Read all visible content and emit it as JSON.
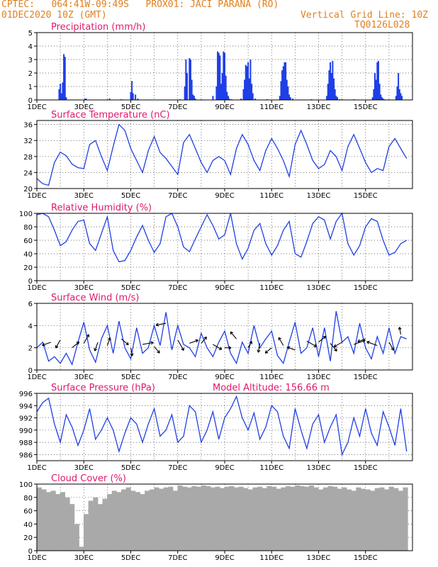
{
  "header": {
    "line1_left": "CPTEC:   064:41W-09:49S   PROX01: JACI PARANA (RO)",
    "line2_left": "01DEC2020 10Z (GMT)",
    "line2_right": "Vertical Grid Line: 10Z",
    "line3_right": "TQ0126L028"
  },
  "x_labels": [
    "1DEC",
    "3DEC",
    "5DEC",
    "7DEC",
    "9DEC",
    "11DEC",
    "13DEC",
    "15DEC"
  ],
  "colors": {
    "title": "#e0186e",
    "header": "#e08020",
    "series": "#1f3fe6",
    "cloud": "#a9a9a9"
  },
  "chart_data": [
    {
      "type": "bar",
      "title": "Precipitation (mm/h)",
      "ylim": [
        0,
        5
      ],
      "yticks": [
        0,
        1,
        2,
        3,
        4,
        5
      ],
      "x_unit": "days since 01DEC2020 10Z",
      "x": [
        0.95,
        1.0,
        1.05,
        1.1,
        1.15,
        1.2,
        1.25,
        2.05,
        2.1,
        3.0,
        3.1,
        3.6,
        4.0,
        4.05,
        4.1,
        4.2,
        4.3,
        6.1,
        6.3,
        6.35,
        6.4,
        6.5,
        6.55,
        6.6,
        6.65,
        6.7,
        6.75,
        7.0,
        7.5,
        7.65,
        7.7,
        7.75,
        7.8,
        7.85,
        7.9,
        7.95,
        8.0,
        8.05,
        8.1,
        8.15,
        8.2,
        8.3,
        8.7,
        8.8,
        8.85,
        8.9,
        8.95,
        9.0,
        9.05,
        9.1,
        9.15,
        9.2,
        9.3,
        9.8,
        10.35,
        10.4,
        10.45,
        10.5,
        10.55,
        10.6,
        10.65,
        10.7,
        10.75,
        10.8,
        10.9,
        11.7,
        12.35,
        12.4,
        12.45,
        12.5,
        12.55,
        12.6,
        12.65,
        12.7,
        12.75,
        12.8,
        12.9,
        13.0,
        13.5,
        14.3,
        14.35,
        14.4,
        14.45,
        14.5,
        14.55,
        14.6,
        14.65,
        14.7,
        14.75,
        14.8,
        15.0,
        15.3,
        15.35,
        15.4,
        15.45,
        15.5,
        15.55
      ],
      "values": [
        0.8,
        1.2,
        0.5,
        1.3,
        3.4,
        3.2,
        0.2,
        0.1,
        0.1,
        0.05,
        0.1,
        0.05,
        0.6,
        1.4,
        0.5,
        0.4,
        0.1,
        0.05,
        1.0,
        3.0,
        2.0,
        3.1,
        3.0,
        1.5,
        0.4,
        0.3,
        0.1,
        0.05,
        0.3,
        1.0,
        3.6,
        3.5,
        3.3,
        1.2,
        2.0,
        3.6,
        3.5,
        1.8,
        0.6,
        0.3,
        0.1,
        0.05,
        0.1,
        0.8,
        1.5,
        2.6,
        2.5,
        2.8,
        1.6,
        3.0,
        1.2,
        0.5,
        0.1,
        0.05,
        0.3,
        1.4,
        2.2,
        2.5,
        2.8,
        2.8,
        1.5,
        1.0,
        0.4,
        0.2,
        0.1,
        0.05,
        0.3,
        1.2,
        2.2,
        2.8,
        2.0,
        2.9,
        1.6,
        0.8,
        0.3,
        0.2,
        0.05,
        0.05,
        0.05,
        0.2,
        0.8,
        2.0,
        1.5,
        2.8,
        2.9,
        1.2,
        0.4,
        0.2,
        0.1,
        0.05,
        0.05,
        0.3,
        1.0,
        2.0,
        0.8,
        0.5,
        0.3
      ]
    },
    {
      "type": "line",
      "title": "Surface Temperature (nC)",
      "ylim": [
        20,
        37
      ],
      "yticks": [
        20,
        24,
        28,
        32,
        36
      ],
      "x": [
        0,
        0.25,
        0.5,
        0.75,
        1.0,
        1.25,
        1.5,
        1.75,
        2.0,
        2.25,
        2.5,
        2.75,
        3.0,
        3.25,
        3.5,
        3.75,
        4.0,
        4.25,
        4.5,
        4.75,
        5.0,
        5.25,
        5.5,
        5.75,
        6.0,
        6.25,
        6.5,
        6.75,
        7.0,
        7.25,
        7.5,
        7.75,
        8.0,
        8.25,
        8.5,
        8.75,
        9.0,
        9.25,
        9.5,
        9.75,
        10.0,
        10.25,
        10.5,
        10.75,
        11.0,
        11.25,
        11.5,
        11.75,
        12.0,
        12.25,
        12.5,
        12.75,
        13.0,
        13.25,
        13.5,
        13.75,
        14.0,
        14.25,
        14.5,
        14.75,
        15.0,
        15.25,
        15.5,
        15.75
      ],
      "values": [
        22.5,
        21.2,
        20.8,
        26.5,
        29.1,
        28.2,
        26.1,
        25.2,
        25.0,
        31.0,
        32.0,
        28.0,
        24.5,
        30.5,
        36.0,
        34.5,
        30.0,
        27.0,
        24.0,
        29.5,
        33.0,
        29.0,
        27.5,
        25.5,
        23.5,
        31.5,
        33.5,
        30.0,
        26.5,
        24.0,
        27.0,
        28.0,
        27.0,
        23.5,
        30.0,
        33.5,
        31.0,
        27.0,
        24.5,
        29.5,
        32.5,
        30.0,
        27.0,
        23.0,
        31.0,
        34.5,
        31.0,
        27.0,
        25.0,
        26.0,
        29.5,
        28.0,
        24.5,
        30.5,
        33.5,
        30.0,
        26.5,
        24.0,
        25.0,
        24.5,
        30.5,
        32.5,
        30.0,
        27.5
      ]
    },
    {
      "type": "line",
      "title": "Relative Humidity (%)",
      "ylim": [
        0,
        100
      ],
      "yticks": [
        0,
        20,
        40,
        60,
        80,
        100
      ],
      "x": [
        0,
        0.25,
        0.5,
        0.75,
        1.0,
        1.25,
        1.5,
        1.75,
        2.0,
        2.25,
        2.5,
        2.75,
        3.0,
        3.25,
        3.5,
        3.75,
        4.0,
        4.25,
        4.5,
        4.75,
        5.0,
        5.25,
        5.5,
        5.75,
        6.0,
        6.25,
        6.5,
        6.75,
        7.0,
        7.25,
        7.5,
        7.75,
        8.0,
        8.25,
        8.5,
        8.75,
        9.0,
        9.25,
        9.5,
        9.75,
        10.0,
        10.25,
        10.5,
        10.75,
        11.0,
        11.25,
        11.5,
        11.75,
        12.0,
        12.25,
        12.5,
        12.75,
        13.0,
        13.25,
        13.5,
        13.75,
        14.0,
        14.25,
        14.5,
        14.75,
        15.0,
        15.25,
        15.5,
        15.75
      ],
      "values": [
        98,
        100,
        95,
        75,
        52,
        58,
        75,
        88,
        90,
        55,
        45,
        70,
        95,
        45,
        28,
        30,
        45,
        65,
        82,
        60,
        42,
        55,
        95,
        100,
        80,
        50,
        43,
        62,
        80,
        98,
        82,
        62,
        68,
        100,
        55,
        32,
        48,
        75,
        85,
        55,
        38,
        52,
        75,
        88,
        40,
        35,
        58,
        85,
        95,
        90,
        62,
        88,
        100,
        55,
        38,
        52,
        80,
        92,
        88,
        60,
        38,
        42,
        55,
        60
      ]
    },
    {
      "type": "line",
      "title": "Surface Wind (m/s)",
      "ylim": [
        0,
        6
      ],
      "yticks": [
        0,
        2,
        4,
        6
      ],
      "x": [
        0,
        0.25,
        0.5,
        0.75,
        1.0,
        1.25,
        1.5,
        1.75,
        2.0,
        2.25,
        2.5,
        2.75,
        3.0,
        3.25,
        3.5,
        3.75,
        4.0,
        4.25,
        4.5,
        4.75,
        5.0,
        5.25,
        5.5,
        5.75,
        6.0,
        6.25,
        6.5,
        6.75,
        7.0,
        7.25,
        7.5,
        7.75,
        8.0,
        8.25,
        8.5,
        8.75,
        9.0,
        9.25,
        9.5,
        9.75,
        10.0,
        10.25,
        10.5,
        10.75,
        11.0,
        11.25,
        11.5,
        11.75,
        12.0,
        12.25,
        12.5,
        12.75,
        13.0,
        13.25,
        13.5,
        13.75,
        14.0,
        14.25,
        14.5,
        14.75,
        15.0,
        15.25,
        15.5,
        15.75
      ],
      "values": [
        2.0,
        2.5,
        0.8,
        1.2,
        0.6,
        1.5,
        0.5,
        2.5,
        4.3,
        1.8,
        0.7,
        2.8,
        4.0,
        1.5,
        4.4,
        2.0,
        1.0,
        3.8,
        1.5,
        2.0,
        4.0,
        2.2,
        5.2,
        1.8,
        4.0,
        2.3,
        2.0,
        1.2,
        3.3,
        2.0,
        1.2,
        2.5,
        3.5,
        1.5,
        0.6,
        2.5,
        1.5,
        4.0,
        2.0,
        2.8,
        3.5,
        1.3,
        0.6,
        2.5,
        4.3,
        1.5,
        2.0,
        3.8,
        1.2,
        3.8,
        0.8,
        5.3,
        2.5,
        3.0,
        1.5,
        4.2,
        2.0,
        1.0,
        3.0,
        1.5,
        3.8,
        1.5,
        3.0,
        2.8
      ],
      "arrow_x": [
        0.6,
        1.0,
        1.5,
        2.0,
        2.6,
        3.0,
        3.6,
        4.0,
        4.5,
        5.0,
        5.5,
        6.0,
        6.5,
        7.0,
        7.5,
        8.0,
        8.5,
        9.0,
        9.5,
        10.0,
        10.5,
        11.0,
        11.5,
        12.0,
        12.5,
        13.0,
        13.5,
        14.0,
        14.5,
        15.0,
        15.5
      ],
      "arrow_y": [
        2.5,
        2.7,
        2.0,
        2.4,
        2.5,
        2.2,
        2.8,
        2.0,
        2.3,
        2.1,
        4.2,
        2.7,
        2.4,
        2.4,
        2.3,
        2.0,
        2.8,
        2.0,
        2.4,
        2.0,
        2.2,
        1.8,
        2.6,
        2.5,
        2.4,
        2.5,
        2.3,
        2.8,
        2.2,
        2.5,
        3.2
      ],
      "arrow_dir_deg": [
        200,
        240,
        40,
        60,
        250,
        70,
        320,
        280,
        10,
        310,
        190,
        300,
        20,
        50,
        330,
        0,
        130,
        60,
        260,
        220,
        120,
        160,
        330,
        40,
        310,
        210,
        20,
        200,
        160,
        300,
        100
      ],
      "arrow_len": [
        1.0,
        1.0,
        1.0,
        1.1,
        1.0,
        0.9,
        1.0,
        0.9,
        1.2,
        0.9,
        1.1,
        1.3,
        1.0,
        0.9,
        1.1,
        0.7,
        1.0,
        0.8,
        1.0,
        0.9,
        1.0,
        0.9,
        1.2,
        1.0,
        1.1,
        1.0,
        1.3,
        0.9,
        1.2,
        1.0,
        0.8
      ]
    },
    {
      "type": "line",
      "title": "Surface Pressure (hPa)",
      "annotation": "Model Altitude: 156.66 m",
      "ylim": [
        985,
        996
      ],
      "yticks": [
        986,
        988,
        990,
        992,
        994,
        996
      ],
      "x": [
        0,
        0.25,
        0.5,
        0.75,
        1.0,
        1.25,
        1.5,
        1.75,
        2.0,
        2.25,
        2.5,
        2.75,
        3.0,
        3.25,
        3.5,
        3.75,
        4.0,
        4.25,
        4.5,
        4.75,
        5.0,
        5.25,
        5.5,
        5.75,
        6.0,
        6.25,
        6.5,
        6.75,
        7.0,
        7.25,
        7.5,
        7.75,
        8.0,
        8.25,
        8.5,
        8.75,
        9.0,
        9.25,
        9.5,
        9.75,
        10.0,
        10.25,
        10.5,
        10.75,
        11.0,
        11.25,
        11.5,
        11.75,
        12.0,
        12.25,
        12.5,
        12.75,
        13.0,
        13.25,
        13.5,
        13.75,
        14.0,
        14.25,
        14.5,
        14.75,
        15.0,
        15.25,
        15.5,
        15.75
      ],
      "values": [
        993,
        994.5,
        995.2,
        991,
        988,
        992.5,
        990.5,
        987.5,
        990,
        993.5,
        988.5,
        990,
        992,
        990,
        986.5,
        989.5,
        992,
        991,
        988,
        991,
        993.5,
        989,
        990,
        992.5,
        988,
        989,
        994,
        993,
        988,
        990,
        993,
        988.5,
        992,
        993.5,
        995.5,
        992,
        990,
        992.8,
        988.5,
        990.5,
        994,
        993,
        989,
        987,
        993.5,
        990,
        987,
        991,
        992.5,
        988,
        990.5,
        992.5,
        986,
        988,
        992,
        989,
        993.5,
        989.5,
        987.5,
        993,
        990.5,
        987.5,
        993.5,
        986.5
      ]
    },
    {
      "type": "bar",
      "title": "Cloud Cover (%)",
      "ylim": [
        0,
        100
      ],
      "yticks": [
        0,
        20,
        40,
        60,
        80,
        100
      ],
      "x": [
        0.1,
        0.3,
        0.5,
        0.7,
        0.9,
        1.1,
        1.3,
        1.5,
        1.7,
        1.9,
        2.1,
        2.3,
        2.5,
        2.7,
        2.9,
        3.1,
        3.3,
        3.5,
        3.7,
        3.9,
        4.1,
        4.3,
        4.5,
        4.7,
        4.9,
        5.1,
        5.3,
        5.5,
        5.7,
        5.9,
        6.1,
        6.3,
        6.5,
        6.7,
        6.9,
        7.1,
        7.3,
        7.5,
        7.7,
        7.9,
        8.1,
        8.3,
        8.5,
        8.7,
        8.9,
        9.1,
        9.3,
        9.5,
        9.7,
        9.9,
        10.1,
        10.3,
        10.5,
        10.7,
        10.9,
        11.1,
        11.3,
        11.5,
        11.7,
        11.9,
        12.1,
        12.3,
        12.5,
        12.7,
        12.9,
        13.1,
        13.3,
        13.5,
        13.7,
        13.9,
        14.1,
        14.3,
        14.5,
        14.7,
        14.9,
        15.1,
        15.3,
        15.5,
        15.7
      ],
      "values": [
        95,
        92,
        88,
        90,
        85,
        88,
        80,
        70,
        40,
        6,
        55,
        75,
        80,
        70,
        78,
        85,
        90,
        88,
        92,
        95,
        90,
        88,
        85,
        90,
        92,
        95,
        93,
        95,
        96,
        90,
        98,
        96,
        95,
        97,
        96,
        98,
        97,
        95,
        96,
        94,
        96,
        97,
        95,
        96,
        94,
        92,
        95,
        96,
        94,
        97,
        96,
        93,
        95,
        97,
        96,
        98,
        97,
        96,
        98,
        95,
        92,
        95,
        97,
        96,
        93,
        95,
        92,
        90,
        95,
        93,
        92,
        90,
        94,
        95,
        92,
        96,
        94,
        90,
        95
      ]
    }
  ]
}
